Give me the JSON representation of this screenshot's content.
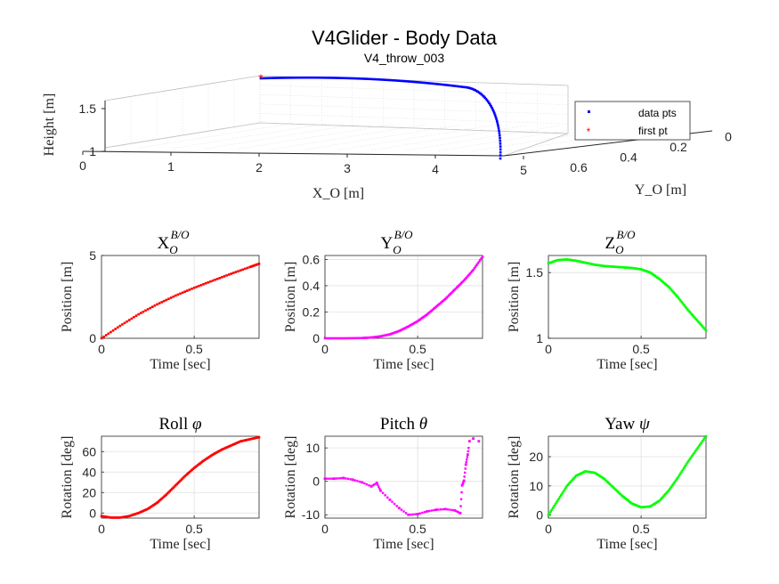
{
  "figure": {
    "title": "V4Glider - Body Data",
    "subtitle": "V4_throw_003"
  },
  "chart_data": [
    {
      "type": "scatter3d",
      "xlabel": "X_O [m]",
      "ylabel": "Y_O [m]",
      "zlabel": "Height [m]",
      "xlim": [
        0,
        5
      ],
      "ylim": [
        0,
        0.6
      ],
      "zlim": [
        1,
        1.5
      ],
      "x_ticks": [
        "0",
        "1",
        "2",
        "3",
        "4",
        "5"
      ],
      "y_ticks": [
        "0.6",
        "0.4",
        "0.2",
        "0"
      ],
      "z_ticks": [
        "1",
        "1.5"
      ],
      "grid": true,
      "legend": {
        "placement": "top-right",
        "entries": [
          "data pts",
          "first pt"
        ]
      },
      "series": [
        {
          "name": "data pts",
          "color": "#0000ff",
          "marker": "dot",
          "x": [
            0.0,
            0.5,
            1.0,
            1.5,
            2.0,
            2.5,
            3.0,
            3.5,
            3.8,
            4.0,
            4.2,
            4.35,
            4.45
          ],
          "y": [
            0.0,
            0.0,
            0.01,
            0.02,
            0.04,
            0.08,
            0.15,
            0.25,
            0.32,
            0.38,
            0.45,
            0.54,
            0.62
          ],
          "z": [
            1.58,
            1.61,
            1.61,
            1.59,
            1.56,
            1.55,
            1.54,
            1.5,
            1.45,
            1.38,
            1.28,
            1.15,
            1.05
          ]
        },
        {
          "name": "first pt",
          "color": "#ff0000",
          "marker": "star",
          "x": [
            0.0
          ],
          "y": [
            0.0
          ],
          "z": [
            1.58
          ]
        }
      ]
    },
    {
      "type": "line",
      "title": "X_O^{B/O}",
      "xlabel": "Time [sec]",
      "ylabel": "Position [m]",
      "xlim": [
        0,
        0.85
      ],
      "ylim": [
        0,
        5
      ],
      "x_ticks": [
        0,
        0.5
      ],
      "y_ticks": [
        0,
        5
      ],
      "color": "#ff0000",
      "series": [
        {
          "x": [
            0,
            0.1,
            0.2,
            0.3,
            0.4,
            0.5,
            0.6,
            0.7,
            0.8,
            0.85
          ],
          "values": [
            0,
            0.75,
            1.45,
            2.05,
            2.58,
            3.05,
            3.48,
            3.9,
            4.3,
            4.5
          ]
        }
      ]
    },
    {
      "type": "line",
      "title": "Y_O^{B/O}",
      "xlabel": "Time [sec]",
      "ylabel": "Position [m]",
      "xlim": [
        0,
        0.85
      ],
      "ylim": [
        0,
        0.63
      ],
      "x_ticks": [
        0,
        0.5
      ],
      "y_ticks": [
        0,
        0.2,
        0.4,
        0.6
      ],
      "color": "#ff00ff",
      "series": [
        {
          "x": [
            0,
            0.1,
            0.2,
            0.25,
            0.3,
            0.35,
            0.4,
            0.45,
            0.5,
            0.55,
            0.6,
            0.65,
            0.7,
            0.75,
            0.8,
            0.85
          ],
          "values": [
            0,
            0,
            0.002,
            0.006,
            0.015,
            0.03,
            0.055,
            0.09,
            0.13,
            0.18,
            0.24,
            0.3,
            0.37,
            0.44,
            0.52,
            0.62
          ]
        }
      ]
    },
    {
      "type": "line",
      "title": "Z_O^{B/O}",
      "xlabel": "Time [sec]",
      "ylabel": "Position [m]",
      "xlim": [
        0,
        0.85
      ],
      "ylim": [
        1,
        1.63
      ],
      "x_ticks": [
        0,
        0.5
      ],
      "y_ticks": [
        1,
        1.5
      ],
      "color": "#00ff00",
      "series": [
        {
          "x": [
            0,
            0.05,
            0.1,
            0.15,
            0.2,
            0.25,
            0.3,
            0.35,
            0.4,
            0.45,
            0.5,
            0.55,
            0.6,
            0.65,
            0.7,
            0.75,
            0.8,
            0.85
          ],
          "values": [
            1.57,
            1.595,
            1.6,
            1.59,
            1.575,
            1.56,
            1.55,
            1.545,
            1.54,
            1.535,
            1.525,
            1.5,
            1.45,
            1.39,
            1.31,
            1.22,
            1.14,
            1.06
          ]
        }
      ]
    },
    {
      "type": "line",
      "title": "Roll φ",
      "xlabel": "Time [sec]",
      "ylabel": "Rotation [deg]",
      "xlim": [
        0,
        0.85
      ],
      "ylim": [
        -5,
        75
      ],
      "x_ticks": [
        0,
        0.5
      ],
      "y_ticks": [
        0,
        20,
        40,
        60
      ],
      "color": "#ff0000",
      "series": [
        {
          "x": [
            0,
            0.05,
            0.1,
            0.15,
            0.2,
            0.25,
            0.3,
            0.35,
            0.4,
            0.45,
            0.5,
            0.55,
            0.6,
            0.65,
            0.7,
            0.75,
            0.8,
            0.85
          ],
          "values": [
            -3,
            -4.5,
            -4.5,
            -3,
            0,
            4,
            10,
            18,
            27,
            36,
            44,
            51,
            57,
            62,
            66,
            70,
            72,
            74
          ]
        }
      ]
    },
    {
      "type": "scatter",
      "title": "Pitch θ",
      "xlabel": "Time [sec]",
      "ylabel": "Rotation [deg]",
      "xlim": [
        0,
        0.85
      ],
      "ylim": [
        -11,
        13.5
      ],
      "x_ticks": [
        0,
        0.5
      ],
      "y_ticks": [
        -10,
        0,
        10
      ],
      "color": "#ff00ff",
      "series": [
        {
          "x": [
            0,
            0.05,
            0.1,
            0.15,
            0.2,
            0.25,
            0.28,
            0.3,
            0.35,
            0.4,
            0.45,
            0.5,
            0.55,
            0.6,
            0.65,
            0.7,
            0.73,
            0.74,
            0.75,
            0.76,
            0.77,
            0.78,
            0.8,
            0.83
          ],
          "values": [
            0.8,
            0.8,
            1.0,
            0.5,
            -0.3,
            -1.5,
            -0.5,
            -2.8,
            -5.5,
            -8.0,
            -10.0,
            -9.8,
            -9.0,
            -8.5,
            -8.3,
            -8.7,
            -9.5,
            -1.2,
            0.2,
            5.0,
            8.0,
            12.0,
            12.8,
            12.0
          ]
        }
      ]
    },
    {
      "type": "line",
      "title": "Yaw ψ",
      "xlabel": "Time [sec]",
      "ylabel": "Rotation [deg]",
      "xlim": [
        0,
        0.85
      ],
      "ylim": [
        -1,
        27
      ],
      "x_ticks": [
        0,
        0.5
      ],
      "y_ticks": [
        0,
        10,
        20
      ],
      "color": "#00ff00",
      "series": [
        {
          "x": [
            0,
            0.05,
            0.1,
            0.15,
            0.2,
            0.25,
            0.3,
            0.35,
            0.4,
            0.45,
            0.5,
            0.55,
            0.6,
            0.65,
            0.7,
            0.75,
            0.8,
            0.85
          ],
          "values": [
            0,
            5,
            10,
            13.5,
            15,
            14.5,
            12.5,
            9.5,
            6.5,
            4,
            2.7,
            3,
            5,
            8.5,
            13,
            18,
            22.5,
            27
          ]
        }
      ]
    }
  ]
}
